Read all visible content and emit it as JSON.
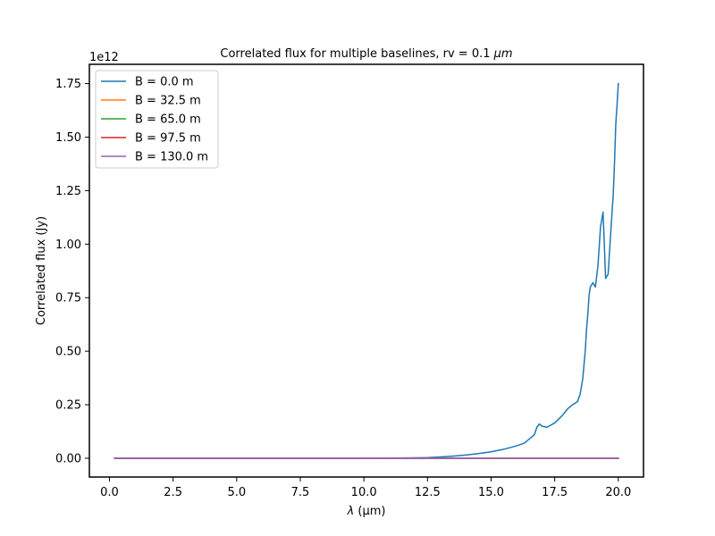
{
  "chart_data": {
    "type": "line",
    "title_main": "Correlated flux for multiple baselines, rv = 0.1 ",
    "title_unit": "μm",
    "xlabel_symbol": "λ",
    "xlabel_unit": " (μm)",
    "ylabel": "Correlated flux (Jy)",
    "y_offset_text": "1e12",
    "y_scale": 1000000000000.0,
    "xlim": [
      -0.79,
      20.99
    ],
    "ylim": [
      -0.0877,
      1.84
    ],
    "x_ticks": [
      0,
      2.5,
      5,
      7.5,
      10,
      12.5,
      15,
      17.5,
      20
    ],
    "x_tick_labels": [
      "0.0",
      "2.5",
      "5.0",
      "7.5",
      "10.0",
      "12.5",
      "15.0",
      "17.5",
      "20.0"
    ],
    "y_ticks": [
      0,
      0.25,
      0.5,
      0.75,
      1.0,
      1.25,
      1.5,
      1.75
    ],
    "y_tick_labels": [
      "0.00",
      "0.25",
      "0.50",
      "0.75",
      "1.00",
      "1.25",
      "1.50",
      "1.75"
    ],
    "legend_position": "top-left",
    "series": [
      {
        "name": "B = 0.0 m",
        "color": "#1f77b4",
        "x": [
          0.2,
          5,
          10,
          11,
          12,
          12.5,
          13,
          13.5,
          14,
          14.5,
          15,
          15.5,
          16,
          16.3,
          16.5,
          16.7,
          16.8,
          16.9,
          17.0,
          17.2,
          17.5,
          17.8,
          18.0,
          18.2,
          18.4,
          18.5,
          18.6,
          18.7,
          18.75,
          18.8,
          18.85,
          18.9,
          19.0,
          19.1,
          19.2,
          19.3,
          19.4,
          19.45,
          19.5,
          19.6,
          19.7,
          19.8,
          19.85,
          19.9,
          19.95,
          20.0
        ],
        "y": [
          0,
          0,
          0,
          0.001,
          0.002,
          0.003,
          0.006,
          0.01,
          0.015,
          0.022,
          0.03,
          0.042,
          0.058,
          0.07,
          0.09,
          0.11,
          0.145,
          0.16,
          0.15,
          0.145,
          0.165,
          0.2,
          0.23,
          0.25,
          0.265,
          0.3,
          0.37,
          0.5,
          0.6,
          0.67,
          0.76,
          0.8,
          0.82,
          0.8,
          0.9,
          1.08,
          1.15,
          1.0,
          0.84,
          0.86,
          1.05,
          1.23,
          1.38,
          1.56,
          1.65,
          1.75
        ]
      },
      {
        "name": "B = 32.5 m",
        "color": "#ff7f0e",
        "x": [
          0.2,
          20.0
        ],
        "y": [
          0,
          0
        ]
      },
      {
        "name": "B = 65.0 m",
        "color": "#2ca02c",
        "x": [
          0.2,
          20.0
        ],
        "y": [
          0,
          0
        ]
      },
      {
        "name": "B = 97.5 m",
        "color": "#d62728",
        "x": [
          0.2,
          20.0
        ],
        "y": [
          0,
          0
        ]
      },
      {
        "name": "B = 130.0 m",
        "color": "#9467bd",
        "x": [
          0.2,
          20.0
        ],
        "y": [
          0,
          0
        ]
      }
    ]
  }
}
